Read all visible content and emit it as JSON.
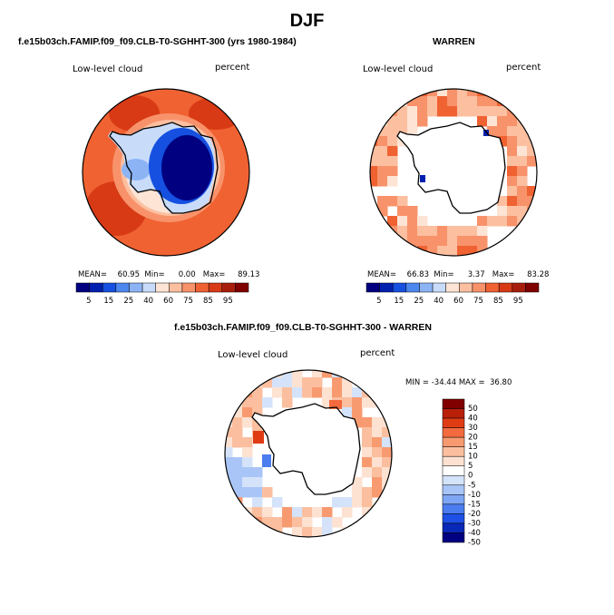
{
  "figure_title": "DJF",
  "palette": {
    "abs": [
      "#000080",
      "#0020b0",
      "#1550e0",
      "#4d88f0",
      "#8cb4f5",
      "#c8dcfa",
      "#fde4d4",
      "#fcbfa0",
      "#f8926a",
      "#f06232",
      "#d83a16",
      "#a81e0c",
      "#800000"
    ],
    "diff": [
      "#000080",
      "#0a28b8",
      "#1e50e6",
      "#4b7cf0",
      "#7ea6f4",
      "#a9c5f7",
      "#d4e3fa",
      "#ffffff",
      "#fde1d1",
      "#fbbf9f",
      "#f89a70",
      "#f26a3e",
      "#e03c14",
      "#b8200a",
      "#800000"
    ]
  },
  "chart_data": [
    {
      "type": "heatmap",
      "projection": "south-polar-stereographic",
      "title": "f.e15b03ch.FAMIP.f09_f09.CLB-T0-SGHHT-300 (yrs 1980-1984)",
      "left_label": "Low-level cloud",
      "right_label": "percent",
      "stats": {
        "mean_label": "MEAN=",
        "mean": "60.95",
        "min_label": "Min=",
        "min": "0.00",
        "max_label": "Max=",
        "max": "89.13"
      },
      "colorbar": {
        "orientation": "horizontal",
        "levels": [
          "5",
          "15",
          "25",
          "40",
          "60",
          "75",
          "85",
          "95"
        ]
      }
    },
    {
      "type": "heatmap",
      "projection": "south-polar-stereographic",
      "title": "WARREN",
      "left_label": "Low-level cloud",
      "right_label": "percent",
      "stats": {
        "mean_label": "MEAN=",
        "mean": "66.83",
        "min_label": "Min=",
        "min": "3.37",
        "max_label": "Max=",
        "max": "83.28"
      },
      "colorbar": {
        "orientation": "horizontal",
        "levels": [
          "5",
          "15",
          "25",
          "40",
          "60",
          "75",
          "85",
          "95"
        ]
      }
    },
    {
      "type": "heatmap",
      "projection": "south-polar-stereographic",
      "title": "f.e15b03ch.FAMIP.f09_f09.CLB-T0-SGHHT-300 - WARREN",
      "left_label": "Low-level cloud",
      "right_label": "percent",
      "stats_line": "MIN = -34.44 MAX =  36.80",
      "colorbar": {
        "orientation": "vertical",
        "levels": [
          "50",
          "40",
          "30",
          "20",
          "15",
          "10",
          "5",
          "0",
          "-5",
          "-10",
          "-15",
          "-20",
          "-30",
          "-40",
          "-50"
        ]
      }
    }
  ]
}
